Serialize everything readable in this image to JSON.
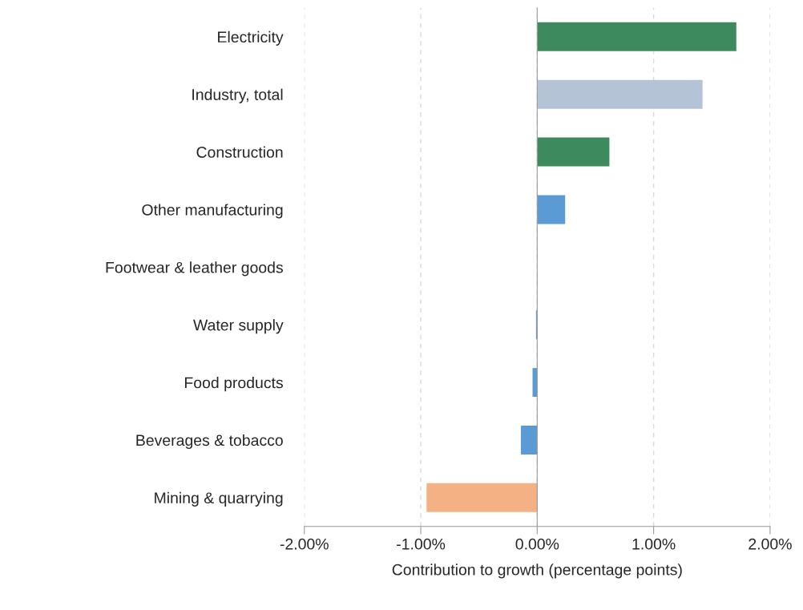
{
  "chart_data": {
    "type": "bar",
    "orientation": "horizontal",
    "xlabel": "Contribution to growth (percentage points)",
    "categories": [
      "Electricity",
      "Industry, total",
      "Construction",
      "Other manufacturing",
      "Footwear & leather goods",
      "Water supply",
      "Food products",
      "Beverages & tobacco",
      "Mining & quarrying"
    ],
    "values": [
      1.71,
      1.42,
      0.62,
      0.24,
      0,
      -0.01,
      -0.04,
      -0.14,
      -0.95
    ],
    "colors": [
      "#3d8a5e",
      "#b4c3d6",
      "#3d8a5e",
      "#5b9bd5",
      "#5b9bd5",
      "#5b9bd5",
      "#5b9bd5",
      "#5b9bd5",
      "#f4b183"
    ],
    "xlim": [
      -2,
      2
    ],
    "xticks": [
      {
        "value": -2,
        "label": "-2.00%"
      },
      {
        "value": -1,
        "label": "-1.00%"
      },
      {
        "value": 0,
        "label": "0.00%"
      },
      {
        "value": 1,
        "label": "1.00%"
      },
      {
        "value": 2,
        "label": "2.00%"
      }
    ],
    "grid": "x",
    "legend": false
  }
}
